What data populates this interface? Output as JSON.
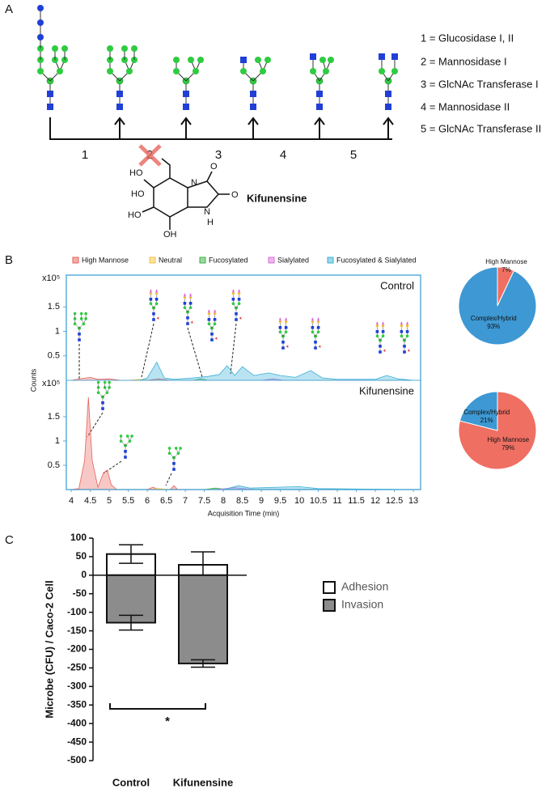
{
  "panel_labels": [
    "A",
    "B",
    "C"
  ],
  "diagram": {
    "steps": [
      "1",
      "2",
      "3",
      "4",
      "5"
    ],
    "enzymes": [
      "1 = Glucosidase I, II",
      "2 = Mannosidase I",
      "3 = GlcNAc Transferase I",
      "4 = Mannosidase II",
      "5 = GlcNAc Transferase II"
    ],
    "inhibitor": "Kifunensine",
    "chem_labels": [
      "HO",
      "HO",
      "HO",
      "OH",
      "O",
      "O",
      "N",
      "N",
      "H"
    ]
  },
  "chart_data": [
    {
      "type": "area",
      "title": "Control",
      "ylabel": "Counts",
      "y_multiplier": "x10⁵",
      "xlim": [
        3.87,
        13.19
      ],
      "ylim": [
        0,
        2.15
      ],
      "yticks": [
        0.5,
        1,
        1.5
      ],
      "series": [
        {
          "name": "High Mannose",
          "color": "#e8605a",
          "x": [
            4,
            4.3,
            4.5,
            4.7,
            5,
            5.3,
            6,
            6.3,
            6.6,
            13
          ],
          "values": [
            0,
            0.04,
            0.06,
            0.02,
            0.03,
            0,
            0,
            0.03,
            0,
            0
          ]
        },
        {
          "name": "Neutral",
          "color": "#f5c342",
          "x": [
            4,
            5.5,
            5.8,
            6.1,
            13
          ],
          "values": [
            0,
            0,
            0.02,
            0,
            0
          ]
        },
        {
          "name": "Fucosylated",
          "color": "#3cb043",
          "x": [
            4,
            7.2,
            7.4,
            7.6,
            13
          ],
          "values": [
            0,
            0,
            0.03,
            0,
            0
          ]
        },
        {
          "name": "Sialylated",
          "color": "#d86fd8",
          "x": [
            4,
            9,
            9.3,
            9.6,
            13
          ],
          "values": [
            0,
            0,
            0.03,
            0,
            0
          ]
        },
        {
          "name": "Fucosylated & Sialylated",
          "color": "#3ab0d6",
          "x": [
            4,
            5.8,
            6.0,
            6.25,
            6.45,
            6.7,
            7.2,
            7.6,
            7.9,
            8.1,
            8.3,
            8.5,
            8.8,
            9.2,
            9.5,
            9.9,
            10.3,
            10.6,
            11,
            12,
            12.3,
            12.6,
            13
          ],
          "values": [
            0,
            0,
            0.05,
            0.37,
            0.05,
            0.02,
            0.05,
            0.08,
            0.12,
            0.3,
            0.1,
            0.28,
            0.1,
            0.15,
            0.1,
            0.06,
            0.2,
            0.05,
            0.02,
            0.02,
            0.1,
            0.03,
            0
          ]
        }
      ]
    },
    {
      "type": "area",
      "title": "Kifunensine",
      "xlabel": "Acquisition Time (min)",
      "y_multiplier": "x10⁵",
      "xlim": [
        3.87,
        13.19
      ],
      "ylim": [
        0,
        2.25
      ],
      "yticks": [
        0.5,
        1,
        1.5
      ],
      "xticks": [
        4,
        4.5,
        5,
        5.5,
        6,
        6.5,
        7,
        7.5,
        8,
        8.5,
        9,
        9.5,
        10,
        10.5,
        11,
        11.5,
        12,
        12.5,
        13
      ],
      "series": [
        {
          "color": "#e8605a",
          "x": [
            4,
            4.2,
            4.35,
            4.45,
            4.55,
            4.7,
            4.85,
            4.95,
            5.05,
            5.2,
            6.0,
            6.15,
            6.3,
            6.6,
            6.7,
            6.8,
            7,
            13
          ],
          "values": [
            0,
            0.02,
            0.6,
            1.9,
            0.6,
            0.05,
            0.35,
            0.4,
            0.1,
            0,
            0,
            0.05,
            0,
            0,
            0.08,
            0,
            0,
            0
          ]
        },
        {
          "color": "#f5c342",
          "x": [
            4,
            6,
            6.3,
            6.6,
            13
          ],
          "values": [
            0,
            0,
            0.02,
            0,
            0
          ]
        },
        {
          "color": "#3cb043",
          "x": [
            4,
            7.5,
            7.8,
            8.1,
            13
          ],
          "values": [
            0,
            0,
            0.03,
            0,
            0
          ]
        },
        {
          "color": "#d86fd8",
          "x": [
            4,
            7.8,
            8.3,
            8.8,
            13
          ],
          "values": [
            0,
            0,
            0.04,
            0,
            0
          ]
        },
        {
          "color": "#3ab0d6",
          "x": [
            4,
            8,
            8.4,
            8.7,
            9.5,
            10,
            10.5,
            13
          ],
          "values": [
            0,
            0,
            0.08,
            0.03,
            0.05,
            0.06,
            0.02,
            0
          ]
        }
      ]
    },
    {
      "type": "pie",
      "categories": [
        "High Mannose",
        "Complex/Hybrid"
      ],
      "values": [
        7,
        93
      ],
      "value_labels": [
        "7%",
        "93%"
      ],
      "colors": [
        "#ef6f63",
        "#3d98d3"
      ]
    },
    {
      "type": "pie",
      "categories": [
        "High Mannose",
        "Complex/Hybrid"
      ],
      "values": [
        79,
        21
      ],
      "value_labels": [
        "79%",
        "21%"
      ],
      "colors": [
        "#ef6f63",
        "#3d98d3"
      ]
    },
    {
      "type": "bar",
      "ylabel": "Microbe (CFU) / Caco-2 Cell",
      "categories": [
        "Control",
        "Kifunensine"
      ],
      "ylim": [
        -500,
        100
      ],
      "yticks": [
        100,
        50,
        0,
        -50,
        -100,
        -150,
        -200,
        -250,
        -300,
        -350,
        -400,
        -450,
        -500
      ],
      "annotation": "*",
      "series": [
        {
          "name": "Adhesion",
          "color": "#ffffff",
          "values": [
            57,
            28
          ],
          "errors": [
            25,
            35
          ]
        },
        {
          "name": "Invasion",
          "color": "#8c8c8c",
          "values": [
            -128,
            -238
          ],
          "errors": [
            20,
            10
          ]
        }
      ]
    }
  ]
}
